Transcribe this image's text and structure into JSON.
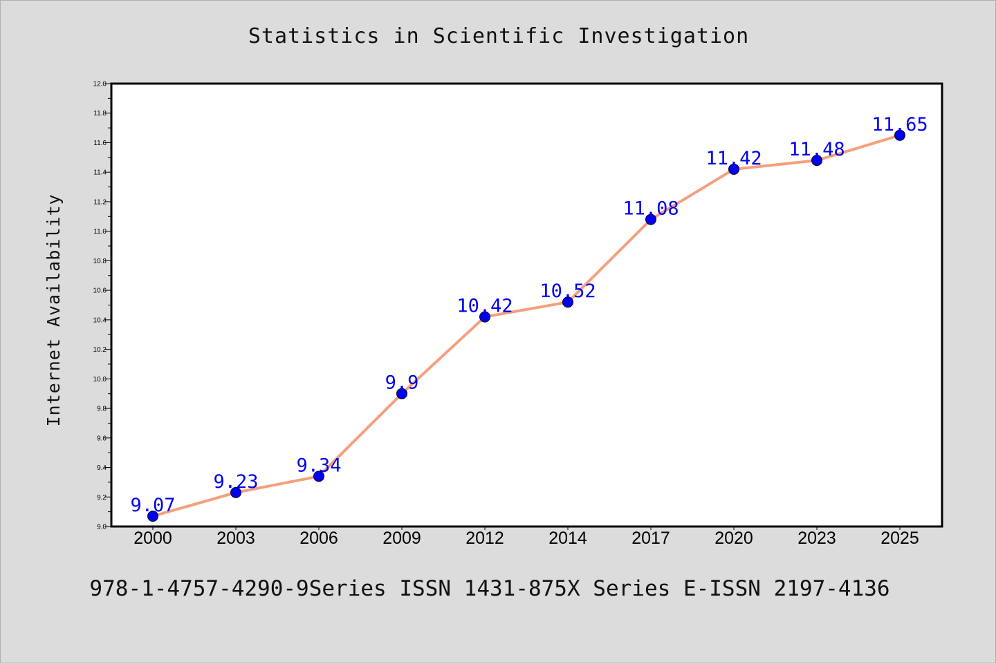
{
  "chart_data": {
    "type": "line",
    "title": "Statistics in Scientific Investigation",
    "xlabel": "",
    "ylabel": "Internet Availability",
    "categories": [
      "2000",
      "2003",
      "2006",
      "2009",
      "2012",
      "2014",
      "2017",
      "2020",
      "2023",
      "2025"
    ],
    "series": [
      {
        "values": [
          9.07,
          9.23,
          9.34,
          9.9,
          10.42,
          10.52,
          11.08,
          11.42,
          11.48,
          11.65
        ],
        "data_labels": [
          "9.07",
          "9.23",
          "9.34",
          "9.9",
          "10.42",
          "10.52",
          "11.08",
          "11.42",
          "11.48",
          "11.65"
        ],
        "line_color": "#f4a07e",
        "marker_color": "#0000ee",
        "label_color": "#0000ee"
      }
    ],
    "ylim": [
      9.0,
      12.0
    ],
    "yticks": [
      "9.0",
      "9.2",
      "9.4",
      "9.6",
      "9.8",
      "10.0",
      "10.2",
      "10.4",
      "10.6",
      "10.8",
      "11.0",
      "11.2",
      "11.4",
      "11.6",
      "11.8",
      "12.0"
    ],
    "grid": false,
    "legend": "none"
  },
  "footer_text": "978-1-4757-4290-9Series ISSN 1431-875X Series E-ISSN 2197-4136",
  "colors": {
    "background": "#dcdcdc",
    "plot_background": "#ffffff",
    "axis": "#000000"
  }
}
